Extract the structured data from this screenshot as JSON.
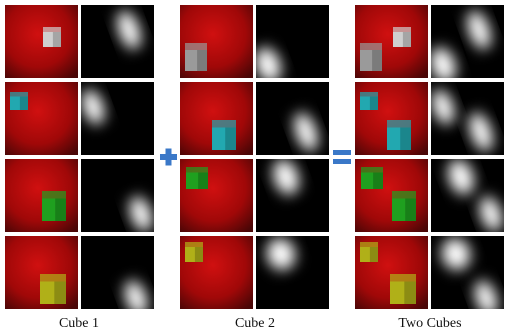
{
  "captions": [
    "Cube 1",
    "Cube 2",
    "Two Cubes"
  ]
}
